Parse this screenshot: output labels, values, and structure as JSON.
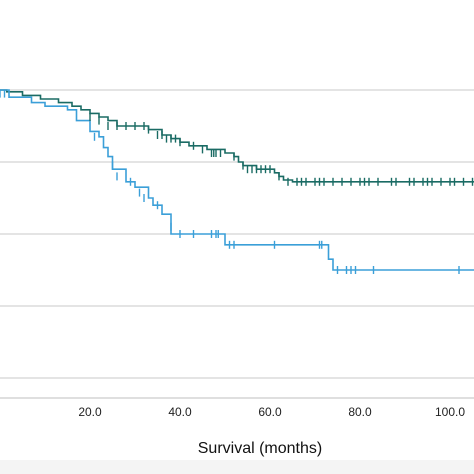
{
  "chart_data": {
    "type": "line",
    "title": "",
    "xlabel": "Survival (months)",
    "ylabel": "",
    "xlim": [
      0,
      112
    ],
    "ylim": [
      0,
      1.05
    ],
    "x_ticks": [
      20,
      40,
      60,
      80,
      100
    ],
    "x_tick_labels": [
      "20.0",
      "40.0",
      "60.0",
      "80.0",
      "100.0"
    ],
    "y_gridlines": [
      0.2,
      0.4,
      0.6,
      0.8,
      1.0
    ],
    "grid": true,
    "legend": "none",
    "series": [
      {
        "color": "#1a6b64",
        "steps": [
          [
            0,
            1.0
          ],
          [
            1.5,
            0.995
          ],
          [
            5,
            0.985
          ],
          [
            9,
            0.975
          ],
          [
            13,
            0.965
          ],
          [
            16,
            0.955
          ],
          [
            18,
            0.945
          ],
          [
            20,
            0.935
          ],
          [
            22,
            0.925
          ],
          [
            24,
            0.915
          ],
          [
            26,
            0.9
          ],
          [
            33,
            0.89
          ],
          [
            36,
            0.875
          ],
          [
            38,
            0.865
          ],
          [
            40,
            0.855
          ],
          [
            42,
            0.845
          ],
          [
            46,
            0.835
          ],
          [
            50,
            0.825
          ],
          [
            52,
            0.815
          ],
          [
            53,
            0.8
          ],
          [
            54,
            0.79
          ],
          [
            57,
            0.78
          ],
          [
            61,
            0.77
          ],
          [
            62,
            0.76
          ],
          [
            63,
            0.75
          ],
          [
            65,
            0.745
          ]
        ],
        "end_x": 112,
        "censored": [
          [
            20,
            0.925
          ],
          [
            22,
            0.915
          ],
          [
            24,
            0.9
          ],
          [
            26,
            0.9
          ],
          [
            28,
            0.9
          ],
          [
            30,
            0.9
          ],
          [
            32,
            0.9
          ],
          [
            33,
            0.89
          ],
          [
            35,
            0.875
          ],
          [
            36,
            0.875
          ],
          [
            37,
            0.865
          ],
          [
            38,
            0.865
          ],
          [
            39,
            0.865
          ],
          [
            40,
            0.855
          ],
          [
            43,
            0.845
          ],
          [
            45,
            0.835
          ],
          [
            47,
            0.825
          ],
          [
            47.5,
            0.825
          ],
          [
            48,
            0.825
          ],
          [
            49,
            0.825
          ],
          [
            52,
            0.815
          ],
          [
            54,
            0.79
          ],
          [
            55,
            0.78
          ],
          [
            56,
            0.78
          ],
          [
            57,
            0.78
          ],
          [
            58,
            0.78
          ],
          [
            59,
            0.78
          ],
          [
            60,
            0.78
          ],
          [
            62,
            0.76
          ],
          [
            64,
            0.745
          ],
          [
            66,
            0.745
          ],
          [
            67,
            0.745
          ],
          [
            68,
            0.745
          ],
          [
            70,
            0.745
          ],
          [
            71,
            0.745
          ],
          [
            72,
            0.745
          ],
          [
            74,
            0.745
          ],
          [
            76,
            0.745
          ],
          [
            78,
            0.745
          ],
          [
            80,
            0.745
          ],
          [
            81,
            0.745
          ],
          [
            82,
            0.745
          ],
          [
            84,
            0.745
          ],
          [
            87,
            0.745
          ],
          [
            88,
            0.745
          ],
          [
            91,
            0.745
          ],
          [
            92,
            0.745
          ],
          [
            94,
            0.745
          ],
          [
            95,
            0.745
          ],
          [
            96,
            0.745
          ],
          [
            98,
            0.745
          ],
          [
            100,
            0.745
          ],
          [
            101,
            0.745
          ],
          [
            103,
            0.745
          ],
          [
            105,
            0.745
          ],
          [
            106,
            0.745
          ],
          [
            110,
            0.745
          ]
        ]
      },
      {
        "color": "#3b9fd8",
        "steps": [
          [
            0,
            1.0
          ],
          [
            2,
            0.98
          ],
          [
            7,
            0.965
          ],
          [
            10,
            0.955
          ],
          [
            15,
            0.945
          ],
          [
            17,
            0.915
          ],
          [
            20,
            0.885
          ],
          [
            22,
            0.87
          ],
          [
            23,
            0.84
          ],
          [
            24,
            0.815
          ],
          [
            25,
            0.78
          ],
          [
            28,
            0.745
          ],
          [
            30,
            0.73
          ],
          [
            33,
            0.7
          ],
          [
            34,
            0.68
          ],
          [
            36,
            0.655
          ],
          [
            38,
            0.6
          ],
          [
            50,
            0.57
          ],
          [
            73,
            0.53
          ],
          [
            74,
            0.5
          ]
        ],
        "end_x": 112,
        "censored": [
          [
            0,
            0.99
          ],
          [
            1,
            0.99
          ],
          [
            21,
            0.87
          ],
          [
            25,
            0.79
          ],
          [
            26,
            0.76
          ],
          [
            29,
            0.745
          ],
          [
            31,
            0.715
          ],
          [
            32,
            0.7
          ],
          [
            35,
            0.68
          ],
          [
            38,
            0.62
          ],
          [
            40,
            0.6
          ],
          [
            43,
            0.6
          ],
          [
            47,
            0.6
          ],
          [
            48,
            0.6
          ],
          [
            48.5,
            0.6
          ],
          [
            51,
            0.57
          ],
          [
            52,
            0.57
          ],
          [
            61,
            0.57
          ],
          [
            71,
            0.57
          ],
          [
            71.5,
            0.57
          ],
          [
            75,
            0.5
          ],
          [
            77,
            0.5
          ],
          [
            78,
            0.5
          ],
          [
            79,
            0.5
          ],
          [
            83,
            0.5
          ],
          [
            102,
            0.5
          ]
        ]
      }
    ]
  }
}
